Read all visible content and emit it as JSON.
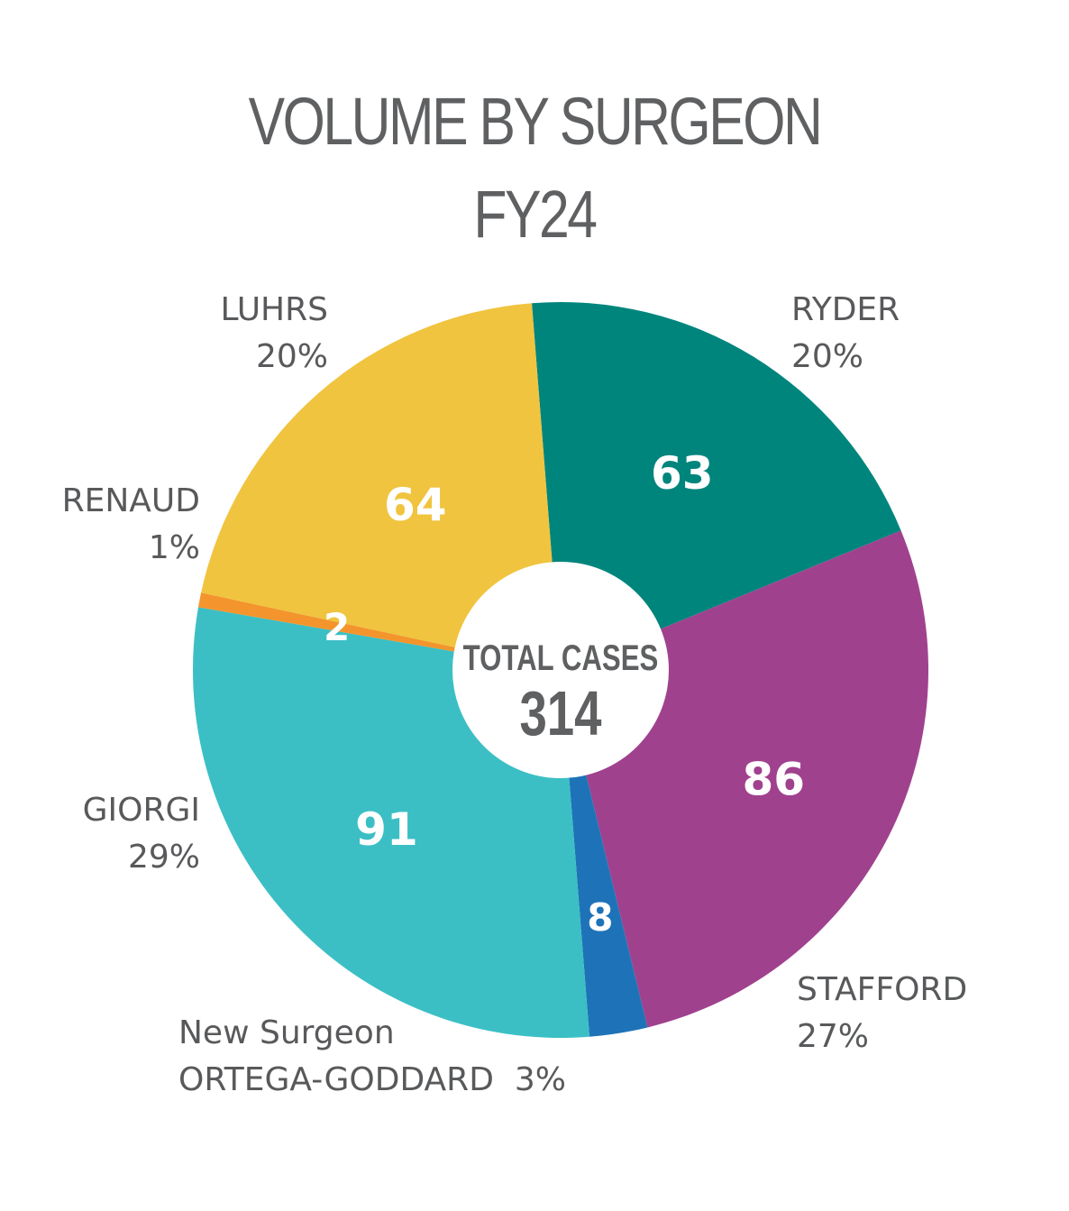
{
  "chart_data": {
    "type": "pie",
    "title": "VOLUME BY SURGEON",
    "subtitle": "FY24",
    "center": {
      "label": "TOTAL CASES",
      "value": "314"
    },
    "slices": [
      {
        "name": "RYDER",
        "value": 63,
        "value_label": "63",
        "percent_label": "20%",
        "color": "#00857d"
      },
      {
        "name": "STAFFORD",
        "value": 86,
        "value_label": "86",
        "percent_label": "27%",
        "color": "#a0418e"
      },
      {
        "name": "ORTEGA-GODDARD",
        "prefix": "New Surgeon",
        "value": 8,
        "value_label": "8",
        "percent_label": "3%",
        "color": "#1e73b8"
      },
      {
        "name": "GIORGI",
        "value": 91,
        "value_label": "91",
        "percent_label": "29%",
        "color": "#3bbfc5"
      },
      {
        "name": "RENAUD",
        "value": 2,
        "value_label": "2",
        "percent_label": "1%",
        "color": "#f3952c"
      },
      {
        "name": "LUHRS",
        "value": 64,
        "value_label": "64",
        "percent_label": "20%",
        "color": "#f0c43f"
      }
    ]
  }
}
